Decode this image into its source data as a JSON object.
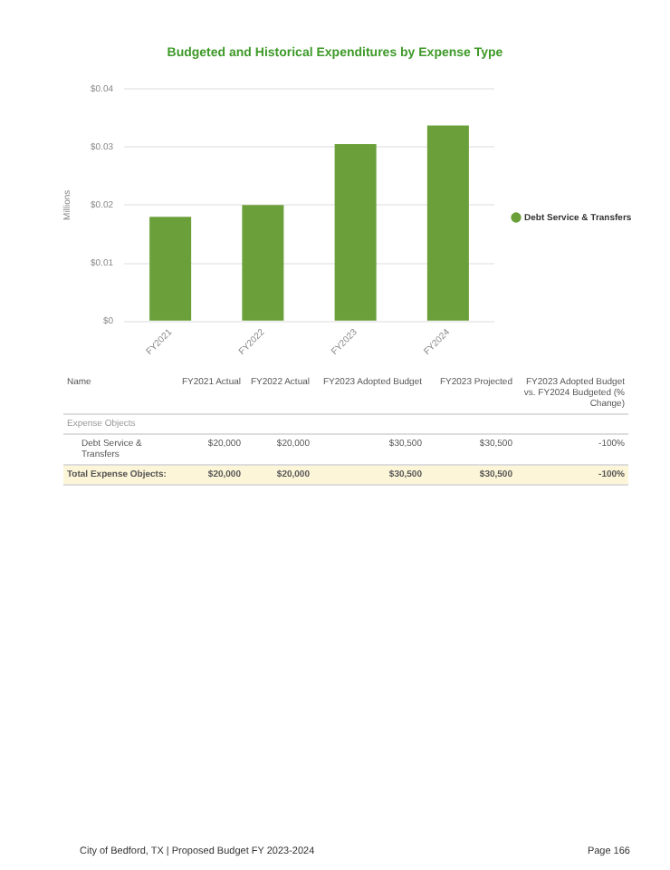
{
  "chart_data": {
    "type": "bar",
    "title": "Budgeted and Historical Expenditures by Expense Type",
    "ylabel": "Millions",
    "categories": [
      "FY2021",
      "FY2022",
      "FY2023",
      "FY2024"
    ],
    "series": [
      {
        "name": "Debt Service & Transfers",
        "color": "#6a9f3a",
        "values": [
          0.018,
          0.02,
          0.0305,
          0.0337
        ]
      }
    ],
    "ylim": [
      0,
      0.04
    ],
    "yticks": [
      {
        "value": 0,
        "label": "$0"
      },
      {
        "value": 0.01,
        "label": "$0.01"
      },
      {
        "value": 0.02,
        "label": "$0.02"
      },
      {
        "value": 0.03,
        "label": "$0.03"
      },
      {
        "value": 0.04,
        "label": "$0.04"
      }
    ],
    "grid": "y",
    "legend": "right",
    "annotations": [
      "Name",
      "FY2021 Actual",
      "FY2022 Actual",
      "FY2023 Adopted Budget",
      "FY2023 Projected",
      "FY2023 Adopted Budget vs. FY2024 Budgeted (% Change)",
      "Expense Objects",
      "Debt Service & Transfers",
      "$20,000",
      "$20,000",
      "$30,500",
      "$30,500",
      "-100%",
      "Total Expense Objects:",
      "$20,000",
      "$20,000",
      "$30,500",
      "$30,500",
      "-100%",
      "City of Bedford, TX | Proposed Budget FY 2023-2024",
      "Page 166"
    ]
  }
}
